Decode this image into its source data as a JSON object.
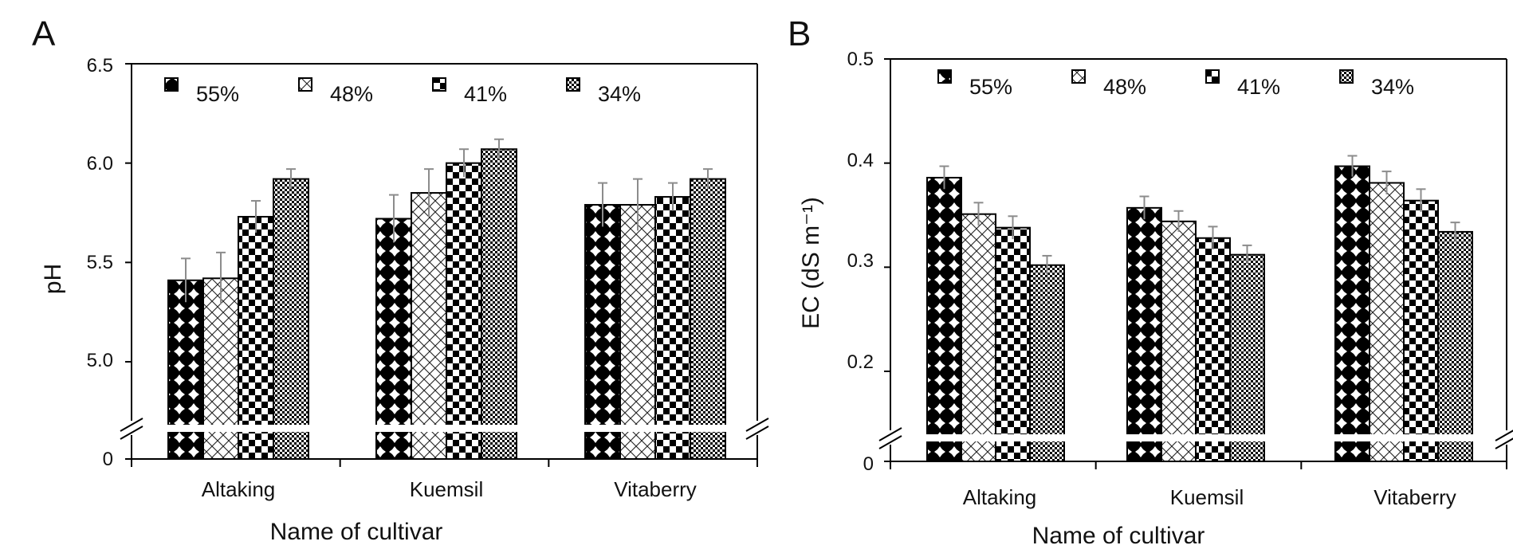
{
  "chart_data": [
    {
      "type": "bar",
      "panel_label": "A",
      "xlabel": "Name of cultivar",
      "ylabel": "pH",
      "categories": [
        "Altaking",
        "Kuemsil",
        "Vitaberry"
      ],
      "series": [
        {
          "name": "55%",
          "values": [
            5.41,
            5.72,
            5.79
          ],
          "errors": [
            0.11,
            0.12,
            0.11
          ]
        },
        {
          "name": "48%",
          "values": [
            5.42,
            5.85,
            5.79
          ],
          "errors": [
            0.13,
            0.12,
            0.13
          ]
        },
        {
          "name": "41%",
          "values": [
            5.73,
            6.0,
            5.83
          ],
          "errors": [
            0.08,
            0.07,
            0.07
          ]
        },
        {
          "name": "34%",
          "values": [
            5.92,
            6.07,
            5.92
          ],
          "errors": [
            0.05,
            0.05,
            0.05
          ]
        }
      ],
      "ylim": [
        4.5,
        6.5
      ],
      "yticks": [
        "6.5",
        "6.0",
        "5.5",
        "5.0",
        "0"
      ],
      "ytick_values": [
        6.5,
        6.0,
        5.5,
        5.0
      ],
      "axis_break": true,
      "legend_position": "top",
      "grid": false
    },
    {
      "type": "bar",
      "panel_label": "B",
      "xlabel": "Name of cultivar",
      "ylabel": "EC (dS m⁻¹)",
      "categories": [
        "Altaking",
        "Kuemsil",
        "Vitaberry"
      ],
      "series": [
        {
          "name": "55%",
          "values": [
            0.386,
            0.357,
            0.397
          ],
          "errors": [
            0.011,
            0.011,
            0.01
          ]
        },
        {
          "name": "48%",
          "values": [
            0.351,
            0.344,
            0.381
          ],
          "errors": [
            0.011,
            0.01,
            0.011
          ]
        },
        {
          "name": "41%",
          "values": [
            0.338,
            0.328,
            0.364
          ],
          "errors": [
            0.011,
            0.011,
            0.011
          ]
        },
        {
          "name": "34%",
          "values": [
            0.302,
            0.312,
            0.334
          ],
          "errors": [
            0.009,
            0.009,
            0.009
          ]
        }
      ],
      "ylim": [
        0.1,
        0.5
      ],
      "yticks": [
        "0.5",
        "0.4",
        "0.3",
        "0.2",
        "0"
      ],
      "ytick_values": [
        0.5,
        0.4,
        0.3,
        0.2
      ],
      "axis_break": true,
      "legend_position": "top",
      "grid": false
    }
  ]
}
